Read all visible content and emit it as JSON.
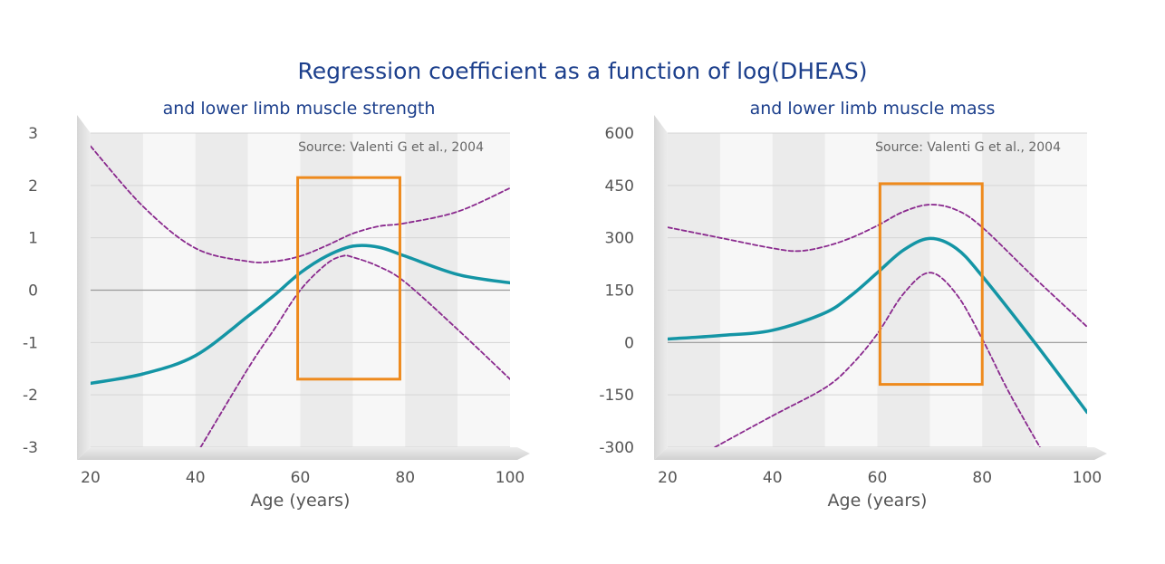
{
  "title": "Regression coefficient as a function of log(DHEAS)",
  "colors": {
    "estimate": "#1495a5",
    "ci": "#8a2a8e",
    "highlight": "#ee8a1d",
    "title": "#1c3f8c"
  },
  "chart_data": [
    {
      "type": "line",
      "subtitle": "and lower limb muscle strength",
      "source": "Source: Valenti G et al., 2004",
      "xlabel": "Age (years)",
      "ylabel": "",
      "xlim": [
        20,
        100
      ],
      "ylim": [
        -3,
        3
      ],
      "xticks": [
        "20",
        "40",
        "60",
        "80",
        "100"
      ],
      "yticks": [
        "3",
        "2",
        "1",
        "0",
        "-1",
        "-2",
        "-3"
      ],
      "highlight_range": {
        "x": [
          59.5,
          79
        ],
        "y": [
          -1.7,
          2.15
        ]
      },
      "series": [
        {
          "style": "solid",
          "x": [
            20,
            30,
            40,
            50,
            55,
            60,
            65,
            70,
            75,
            80,
            90,
            100
          ],
          "y": [
            -1.78,
            -1.6,
            -1.25,
            -0.5,
            -0.1,
            0.33,
            0.65,
            0.84,
            0.82,
            0.65,
            0.3,
            0.14
          ]
        },
        {
          "style": "dashed",
          "x": [
            20,
            30,
            40,
            50,
            55,
            60,
            65,
            70,
            75,
            80,
            90,
            100
          ],
          "y": [
            2.75,
            1.6,
            0.8,
            0.55,
            0.55,
            0.65,
            0.85,
            1.08,
            1.22,
            1.28,
            1.5,
            1.95
          ]
        },
        {
          "style": "dashed",
          "x": [
            41,
            50,
            55,
            60,
            65,
            68,
            70,
            75,
            80,
            90,
            100
          ],
          "y": [
            -3.0,
            -1.5,
            -0.75,
            0.0,
            0.5,
            0.65,
            0.63,
            0.45,
            0.15,
            -0.75,
            -1.7
          ]
        }
      ]
    },
    {
      "type": "line",
      "subtitle": "and lower limb muscle mass",
      "source": "Source: Valenti G et al., 2004",
      "xlabel": "Age (years)",
      "ylabel": "",
      "xlim": [
        20,
        100
      ],
      "ylim": [
        -300,
        600
      ],
      "xticks": [
        "20",
        "40",
        "60",
        "80",
        "100"
      ],
      "yticks": [
        "600",
        "450",
        "300",
        "150",
        "0",
        "-150",
        "-300"
      ],
      "highlight_range": {
        "x": [
          60.5,
          80
        ],
        "y": [
          -120,
          455
        ]
      },
      "series": [
        {
          "style": "solid",
          "x": [
            20,
            30,
            40,
            50,
            55,
            60,
            65,
            70,
            75,
            80,
            90,
            100
          ],
          "y": [
            10,
            20,
            35,
            85,
            135,
            200,
            265,
            298,
            270,
            190,
            0,
            -200
          ]
        },
        {
          "style": "dashed",
          "x": [
            20,
            30,
            40,
            45,
            50,
            55,
            60,
            65,
            70,
            75,
            80,
            90,
            100
          ],
          "y": [
            330,
            300,
            270,
            262,
            275,
            300,
            335,
            375,
            395,
            380,
            330,
            185,
            45
          ]
        },
        {
          "style": "dashed",
          "x": [
            29,
            40,
            50,
            55,
            60,
            65,
            70,
            75,
            80,
            85,
            91
          ],
          "y": [
            -300,
            -210,
            -130,
            -65,
            25,
            140,
            200,
            140,
            10,
            -140,
            -300
          ]
        }
      ]
    }
  ]
}
